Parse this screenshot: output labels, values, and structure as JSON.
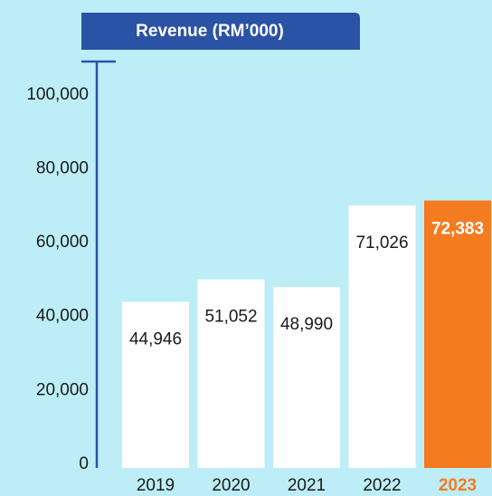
{
  "chart_data": {
    "type": "bar",
    "title": "Revenue (RM’000)",
    "categories": [
      "2019",
      "2020",
      "2021",
      "2022",
      "2023"
    ],
    "values": [
      44946,
      51052,
      48990,
      71026,
      72383
    ],
    "value_labels": [
      "44,946",
      "51,052",
      "48,990",
      "71,026",
      "72,383"
    ],
    "colors": [
      "#ffffff",
      "#ffffff",
      "#ffffff",
      "#ffffff",
      "#f47b20"
    ],
    "ylim": [
      0,
      110000
    ],
    "yticks": [
      0,
      {
        "value": 20000,
        "label": "20,000"
      },
      {
        "value": 40000,
        "label": "40,000"
      },
      {
        "value": 60000,
        "label": "60,000"
      },
      {
        "value": 80000,
        "label": "80,000"
      },
      {
        "value": 100000,
        "label": "100,000"
      }
    ]
  }
}
